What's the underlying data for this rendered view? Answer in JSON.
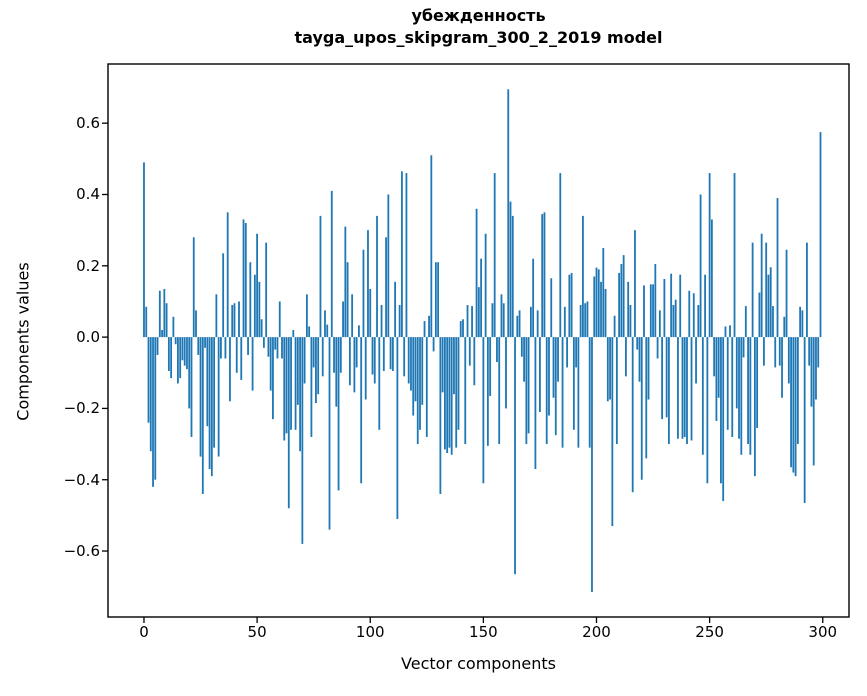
{
  "figure": {
    "background": "#ffffff",
    "text_color": "#000000"
  },
  "chart_data": {
    "type": "bar",
    "title_line1": "убежденность",
    "title_line2": "tayga_upos_skipgram_300_2_2019 model",
    "xlabel": "Vector components",
    "ylabel": "Components values",
    "bar_color": "#1f77b4",
    "axis_color": "#000000",
    "grid": false,
    "legend": "none",
    "x_ticks": [
      0,
      50,
      100,
      150,
      200,
      250,
      300
    ],
    "y_ticks": [
      0.6,
      0.4,
      0.2,
      0.0,
      -0.2,
      -0.4,
      -0.6
    ],
    "y_tick_labels": [
      "0.6",
      "0.4",
      "0.2",
      "0.0",
      "−0.2",
      "−0.4",
      "−0.6"
    ],
    "xlim": [
      -15.9,
      311.6
    ],
    "ylim": [
      -0.785,
      0.766
    ],
    "x": "component index 0..299",
    "values": [
      0.49,
      0.085,
      -0.24,
      -0.32,
      -0.42,
      -0.4,
      -0.05,
      0.13,
      0.02,
      0.135,
      0.095,
      -0.095,
      -0.115,
      0.057,
      -0.02,
      -0.13,
      -0.115,
      -0.065,
      -0.08,
      -0.09,
      -0.2,
      -0.28,
      0.28,
      0.075,
      -0.05,
      -0.335,
      -0.44,
      -0.03,
      -0.25,
      -0.37,
      -0.39,
      -0.31,
      0.12,
      -0.335,
      -0.06,
      0.235,
      -0.06,
      0.35,
      -0.18,
      0.09,
      0.095,
      -0.1,
      0.1,
      -0.12,
      0.33,
      0.32,
      -0.05,
      0.21,
      -0.15,
      0.175,
      0.29,
      0.155,
      0.05,
      -0.03,
      0.265,
      -0.055,
      -0.15,
      -0.23,
      -0.035,
      -0.06,
      0.1,
      -0.06,
      -0.29,
      -0.27,
      -0.48,
      -0.26,
      0.02,
      -0.26,
      -0.19,
      -0.32,
      -0.58,
      -0.13,
      0.12,
      0.03,
      -0.28,
      -0.085,
      -0.185,
      -0.16,
      0.34,
      -0.11,
      0.075,
      0.035,
      -0.54,
      0.41,
      -0.1,
      -0.195,
      -0.43,
      -0.1,
      0.1,
      0.31,
      0.21,
      -0.135,
      0.12,
      -0.155,
      -0.085,
      0.033,
      -0.41,
      0.245,
      -0.175,
      0.3,
      0.135,
      -0.105,
      -0.13,
      0.34,
      -0.26,
      0.09,
      -0.095,
      0.28,
      0.4,
      -0.09,
      -0.095,
      0.155,
      -0.51,
      0.09,
      0.465,
      -0.11,
      0.46,
      -0.13,
      -0.15,
      -0.22,
      -0.18,
      -0.3,
      -0.26,
      -0.19,
      0.045,
      -0.28,
      0.06,
      0.51,
      -0.04,
      0.21,
      0.21,
      -0.44,
      -0.155,
      -0.315,
      -0.325,
      -0.31,
      -0.33,
      -0.16,
      -0.31,
      -0.26,
      0.045,
      0.05,
      -0.3,
      0.09,
      -0.08,
      0.087,
      -0.135,
      0.36,
      0.14,
      0.22,
      -0.41,
      0.29,
      -0.305,
      -0.165,
      0.095,
      0.46,
      -0.07,
      -0.3,
      0.12,
      0.095,
      -0.2,
      0.695,
      0.38,
      0.34,
      -0.665,
      0.06,
      0.075,
      -0.055,
      -0.125,
      -0.3,
      -0.27,
      0.085,
      0.22,
      -0.37,
      0.075,
      -0.21,
      0.345,
      0.35,
      -0.3,
      -0.22,
      0.165,
      -0.17,
      -0.275,
      -0.125,
      0.46,
      -0.31,
      0.085,
      -0.085,
      0.175,
      0.18,
      -0.26,
      -0.085,
      -0.31,
      0.09,
      0.34,
      0.095,
      0.1,
      -0.31,
      -0.715,
      0.17,
      0.195,
      0.19,
      0.155,
      0.25,
      0.135,
      -0.18,
      -0.175,
      -0.53,
      0.06,
      -0.3,
      0.18,
      0.205,
      0.23,
      -0.11,
      0.155,
      0.09,
      -0.435,
      0.3,
      -0.035,
      -0.125,
      -0.4,
      0.145,
      -0.34,
      -0.175,
      0.148,
      0.148,
      0.205,
      -0.06,
      0.075,
      -0.23,
      0.163,
      -0.225,
      -0.3,
      0.178,
      0.09,
      0.105,
      -0.285,
      0.175,
      -0.285,
      -0.28,
      -0.3,
      0.13,
      -0.29,
      0.123,
      -0.13,
      0.09,
      0.4,
      -0.33,
      0.175,
      -0.41,
      0.46,
      0.33,
      -0.11,
      -0.235,
      -0.17,
      -0.41,
      -0.46,
      0.03,
      -0.26,
      0.033,
      -0.28,
      0.46,
      -0.2,
      -0.285,
      -0.33,
      -0.057,
      0.087,
      -0.3,
      -0.33,
      0.265,
      -0.39,
      -0.255,
      0.125,
      0.29,
      -0.08,
      0.265,
      0.175,
      0.196,
      0.087,
      -0.085,
      0.39,
      -0.08,
      -0.17,
      0.057,
      0.245,
      -0.13,
      -0.365,
      -0.38,
      -0.39,
      -0.3,
      0.085,
      0.075,
      -0.465,
      0.265,
      -0.08,
      -0.195,
      -0.36,
      -0.175,
      -0.085,
      0.575
    ]
  }
}
